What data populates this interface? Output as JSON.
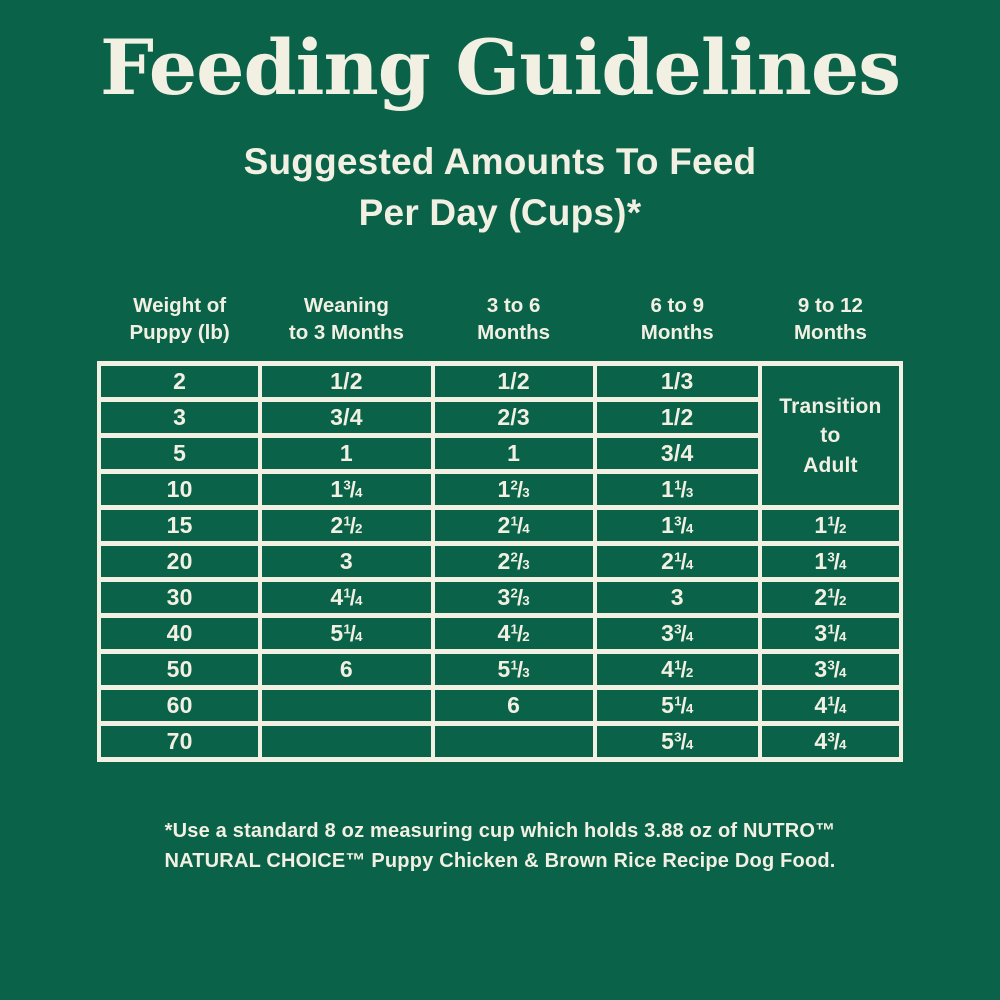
{
  "title": "Feeding Guidelines",
  "subtitle": {
    "line1": "Suggested Amounts To Feed",
    "line2": "Per Day (Cups)*"
  },
  "table": {
    "headers": [
      {
        "line1": "Weight of",
        "line2": "Puppy (lb)"
      },
      {
        "line1": "Weaning",
        "line2": "to 3 Months"
      },
      {
        "line1": "3 to 6",
        "line2": "Months"
      },
      {
        "line1": "6 to 9",
        "line2": "Months"
      },
      {
        "line1": "9 to 12",
        "line2": "Months"
      }
    ],
    "transition_cell": {
      "lines": [
        "Transition",
        "to",
        "Adult"
      ],
      "row_span": 4
    },
    "rows": [
      {
        "weight": "2",
        "weaning_to_3_months": "1/2",
        "months_3_to_6": "1/2",
        "months_6_to_9": "1/3",
        "months_9_to_12": null
      },
      {
        "weight": "3",
        "weaning_to_3_months": "3/4",
        "months_3_to_6": "2/3",
        "months_6_to_9": "1/2",
        "months_9_to_12": null
      },
      {
        "weight": "5",
        "weaning_to_3_months": "1",
        "months_3_to_6": "1",
        "months_6_to_9": "3/4",
        "months_9_to_12": null
      },
      {
        "weight": "10",
        "weaning_to_3_months": "1 3/4",
        "months_3_to_6": "1 2/3",
        "months_6_to_9": "1 1/3",
        "months_9_to_12": null
      },
      {
        "weight": "15",
        "weaning_to_3_months": "2 1/2",
        "months_3_to_6": "2 1/4",
        "months_6_to_9": "1 3/4",
        "months_9_to_12": "1 1/2"
      },
      {
        "weight": "20",
        "weaning_to_3_months": "3",
        "months_3_to_6": "2 2/3",
        "months_6_to_9": "2 1/4",
        "months_9_to_12": "1 3/4"
      },
      {
        "weight": "30",
        "weaning_to_3_months": "4 1/4",
        "months_3_to_6": "3 2/3",
        "months_6_to_9": "3",
        "months_9_to_12": "2 1/2"
      },
      {
        "weight": "40",
        "weaning_to_3_months": "5 1/4",
        "months_3_to_6": "4 1/2",
        "months_6_to_9": "3 3/4",
        "months_9_to_12": "3 1/4"
      },
      {
        "weight": "50",
        "weaning_to_3_months": "6",
        "months_3_to_6": "5 1/3",
        "months_6_to_9": "4 1/2",
        "months_9_to_12": "3 3/4"
      },
      {
        "weight": "60",
        "weaning_to_3_months": "",
        "months_3_to_6": "6",
        "months_6_to_9": "5 1/4",
        "months_9_to_12": "4 1/4"
      },
      {
        "weight": "70",
        "weaning_to_3_months": "",
        "months_3_to_6": "",
        "months_6_to_9": "5 3/4",
        "months_9_to_12": "4 3/4"
      }
    ]
  },
  "footnote": {
    "line1": "*Use a standard 8 oz measuring cup which holds 3.88 oz of NUTRO™",
    "line2": "NATURAL CHOICE™ Puppy Chicken & Brown Rice Recipe Dog Food."
  },
  "colors": {
    "background_green": "#0A6349",
    "text_cream": "#F2EFE3"
  }
}
